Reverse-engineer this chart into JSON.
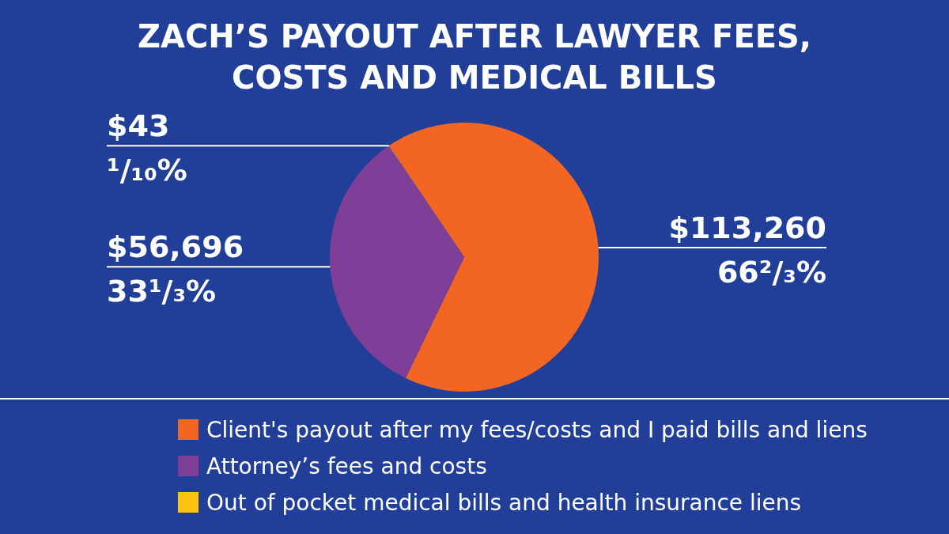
{
  "chart_data": {
    "type": "pie",
    "title": "ZACH’S PAYOUT AFTER LAWYER FEES, COSTS AND MEDICAL BILLS",
    "categories": [
      "Client's payout after my fees/costs and I paid bills and liens",
      "Attorney’s fees and costs",
      "Out of pocket medical bills and health insurance liens"
    ],
    "values": [
      113260,
      56696,
      43
    ],
    "colors": [
      "#f26522",
      "#7f3f98",
      "#ffc20e"
    ],
    "value_labels": [
      "$113,260\n66²/₃%",
      "$56,696\n33¹/₃%",
      "$43\n¹/₁₀%"
    ],
    "legend": "bottom"
  }
}
